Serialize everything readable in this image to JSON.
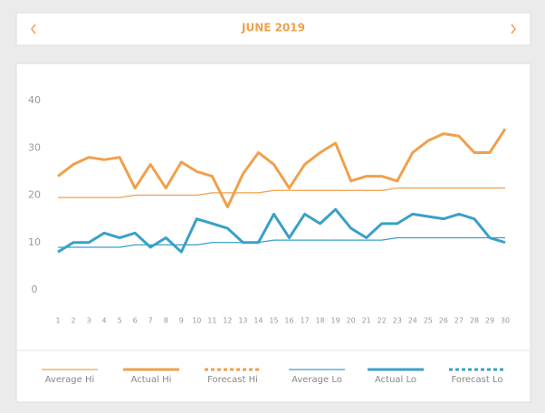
{
  "header": {
    "title": "JUNE 2019"
  },
  "chart_data": {
    "type": "line",
    "x": [
      1,
      2,
      3,
      4,
      5,
      6,
      7,
      8,
      9,
      10,
      11,
      12,
      13,
      14,
      15,
      16,
      17,
      18,
      19,
      20,
      21,
      22,
      23,
      24,
      25,
      26,
      27,
      28,
      29,
      30
    ],
    "xlim": [
      1,
      30
    ],
    "xticks": [
      1,
      2,
      3,
      4,
      5,
      6,
      7,
      8,
      9,
      10,
      11,
      12,
      13,
      14,
      15,
      16,
      17,
      18,
      19,
      20,
      21,
      22,
      23,
      24,
      25,
      26,
      27,
      28,
      29,
      30
    ],
    "ylim": [
      0,
      40
    ],
    "yticks": [
      0,
      10,
      20,
      30,
      40
    ],
    "grid": false,
    "legend": "bottom",
    "series": [
      {
        "name": "Average Hi",
        "color": "#f0a04b",
        "line_width": 1.2,
        "dashed": false,
        "values": [
          19.5,
          19.5,
          19.5,
          19.5,
          19.5,
          20,
          20,
          20,
          20,
          20,
          20.5,
          20.5,
          20.5,
          20.5,
          21,
          21,
          21,
          21,
          21,
          21,
          21,
          21,
          21.5,
          21.5,
          21.5,
          21.5,
          21.5,
          21.5,
          21.5,
          21.5
        ]
      },
      {
        "name": "Actual Hi",
        "color": "#f0a04b",
        "line_width": 3,
        "dashed": false,
        "values": [
          24,
          26.5,
          28,
          27.5,
          28,
          21.5,
          26.5,
          21.5,
          27,
          25,
          24,
          17.5,
          24.5,
          29,
          26.5,
          21.5,
          26.5,
          29,
          31,
          23,
          24,
          24,
          23,
          29,
          31.5,
          33,
          32.5,
          29,
          29,
          34
        ]
      },
      {
        "name": "Forecast Hi",
        "color": "#f0a04b",
        "line_width": 3,
        "dashed": true,
        "values": [
          null,
          null,
          null,
          null,
          null,
          null,
          null,
          null,
          null,
          null,
          null,
          null,
          null,
          null,
          null,
          null,
          null,
          null,
          null,
          null,
          null,
          null,
          null,
          null,
          null,
          null,
          null,
          null,
          null,
          null
        ]
      },
      {
        "name": "Average Lo",
        "color": "#3aa0c8",
        "line_width": 1.2,
        "dashed": false,
        "values": [
          9,
          9,
          9,
          9,
          9,
          9.5,
          9.5,
          9.5,
          9.5,
          9.5,
          10,
          10,
          10,
          10,
          10.5,
          10.5,
          10.5,
          10.5,
          10.5,
          10.5,
          10.5,
          10.5,
          11,
          11,
          11,
          11,
          11,
          11,
          11,
          11
        ]
      },
      {
        "name": "Actual Lo",
        "color": "#3aa0c8",
        "line_width": 3,
        "dashed": false,
        "values": [
          8,
          10,
          10,
          12,
          11,
          12,
          9,
          11,
          8,
          15,
          14,
          13,
          10,
          10,
          16,
          11,
          16,
          14,
          17,
          13,
          11,
          14,
          14,
          16,
          15.5,
          15,
          16,
          15,
          11,
          10
        ]
      },
      {
        "name": "Forecast Lo",
        "color": "#3aa0c8",
        "line_width": 3,
        "dashed": true,
        "values": [
          null,
          null,
          null,
          null,
          null,
          null,
          null,
          null,
          null,
          null,
          null,
          null,
          null,
          null,
          null,
          null,
          null,
          null,
          null,
          null,
          null,
          null,
          null,
          null,
          null,
          null,
          null,
          null,
          null,
          null
        ]
      }
    ]
  }
}
